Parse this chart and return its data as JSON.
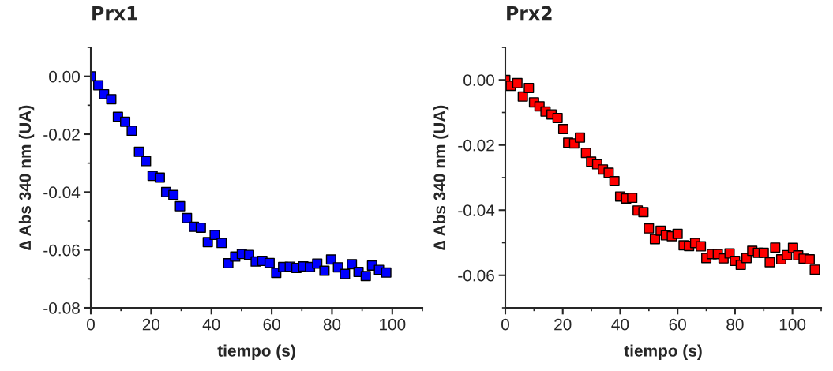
{
  "chart_data": [
    {
      "type": "scatter",
      "title": "Prx1",
      "xlabel": "tiempo (s)",
      "ylabel": "∆ Abs 340 nm (UA)",
      "marker": "square",
      "grid": false,
      "legend": false,
      "xlim": [
        0,
        110
      ],
      "ylim": [
        -0.08,
        0.01
      ],
      "xticks": [
        0,
        20,
        40,
        60,
        80,
        100
      ],
      "yticks": [
        {
          "value": -0.08,
          "label": "-0.08"
        },
        {
          "value": -0.06,
          "label": "-0.06"
        },
        {
          "value": -0.04,
          "label": "-0.04"
        },
        {
          "value": -0.02,
          "label": "-0.02"
        },
        {
          "value": 0,
          "label": "0.00"
        }
      ],
      "series": [
        {
          "color": "#0000ff",
          "x": [
            0,
            2.5,
            4.4,
            6.8,
            9.0,
            11.4,
            13.6,
            16.0,
            18.3,
            20.5,
            22.9,
            25.0,
            27.4,
            29.6,
            31.9,
            34.2,
            36.5,
            38.8,
            41.1,
            43.4,
            45.6,
            47.9,
            50.1,
            52.5,
            54.7,
            56.9,
            59.3,
            61.5,
            63.8,
            66.0,
            68.2,
            70.5,
            72.7,
            75.1,
            77.5,
            79.7,
            82.0,
            84.3,
            86.6,
            88.8,
            91.2,
            93.3,
            95.6,
            98.0
          ],
          "values": [
            0,
            -0.0031,
            -0.0062,
            -0.0079,
            -0.014,
            -0.0157,
            -0.0188,
            -0.0261,
            -0.0293,
            -0.0344,
            -0.035,
            -0.04,
            -0.041,
            -0.0449,
            -0.049,
            -0.052,
            -0.0523,
            -0.0573,
            -0.0548,
            -0.0576,
            -0.0646,
            -0.0623,
            -0.0614,
            -0.0617,
            -0.064,
            -0.0638,
            -0.0645,
            -0.0679,
            -0.0659,
            -0.0658,
            -0.0662,
            -0.0657,
            -0.0659,
            -0.0647,
            -0.0672,
            -0.0633,
            -0.066,
            -0.0683,
            -0.0649,
            -0.0676,
            -0.069,
            -0.0654,
            -0.0669,
            -0.0678
          ]
        }
      ]
    },
    {
      "type": "scatter",
      "title": "Prx2",
      "xlabel": "tiempo (s)",
      "ylabel": "∆ Abs 340 nm (UA)",
      "marker": "square",
      "grid": false,
      "legend": false,
      "xlim": [
        0,
        110
      ],
      "ylim": [
        -0.07,
        0.01
      ],
      "xticks": [
        0,
        20,
        40,
        60,
        80,
        100
      ],
      "yticks": [
        {
          "value": -0.06,
          "label": "-0.06"
        },
        {
          "value": -0.04,
          "label": "-0.04"
        },
        {
          "value": -0.02,
          "label": "-0.02"
        },
        {
          "value": 0,
          "label": "0.00"
        }
      ],
      "series": [
        {
          "color": "#ff0000",
          "x": [
            0,
            1.9,
            4.2,
            6.1,
            8.2,
            10.0,
            11.9,
            14.0,
            16.1,
            18.2,
            20.2,
            21.9,
            24.0,
            26.0,
            28.1,
            29.9,
            32.0,
            34.0,
            36.0,
            38.0,
            40.0,
            42.1,
            44.2,
            46.1,
            48.1,
            50.0,
            52.1,
            54.1,
            55.9,
            58.0,
            60.0,
            62.1,
            64.0,
            66.1,
            68.1,
            70.0,
            71.9,
            74.0,
            76.0,
            78.1,
            80.0,
            82.0,
            84.0,
            86.0,
            88.0,
            90.0,
            92.1,
            94.0,
            96.1,
            98.1,
            100.2,
            102.0,
            103.9,
            106.0,
            107.8
          ],
          "values": [
            0,
            -0.0018,
            -0.001,
            -0.0051,
            -0.0025,
            -0.0069,
            -0.0081,
            -0.0097,
            -0.0106,
            -0.0117,
            -0.0151,
            -0.0193,
            -0.0195,
            -0.0177,
            -0.0224,
            -0.0251,
            -0.0259,
            -0.0275,
            -0.0285,
            -0.0311,
            -0.0358,
            -0.0364,
            -0.0362,
            -0.0401,
            -0.0406,
            -0.0456,
            -0.0489,
            -0.0463,
            -0.0477,
            -0.048,
            -0.0473,
            -0.0508,
            -0.051,
            -0.0501,
            -0.0511,
            -0.0547,
            -0.0535,
            -0.0535,
            -0.0548,
            -0.0533,
            -0.0556,
            -0.0568,
            -0.0547,
            -0.0525,
            -0.0531,
            -0.0531,
            -0.056,
            -0.0515,
            -0.0551,
            -0.0538,
            -0.0516,
            -0.0539,
            -0.0549,
            -0.0551,
            -0.0583
          ]
        }
      ]
    }
  ]
}
